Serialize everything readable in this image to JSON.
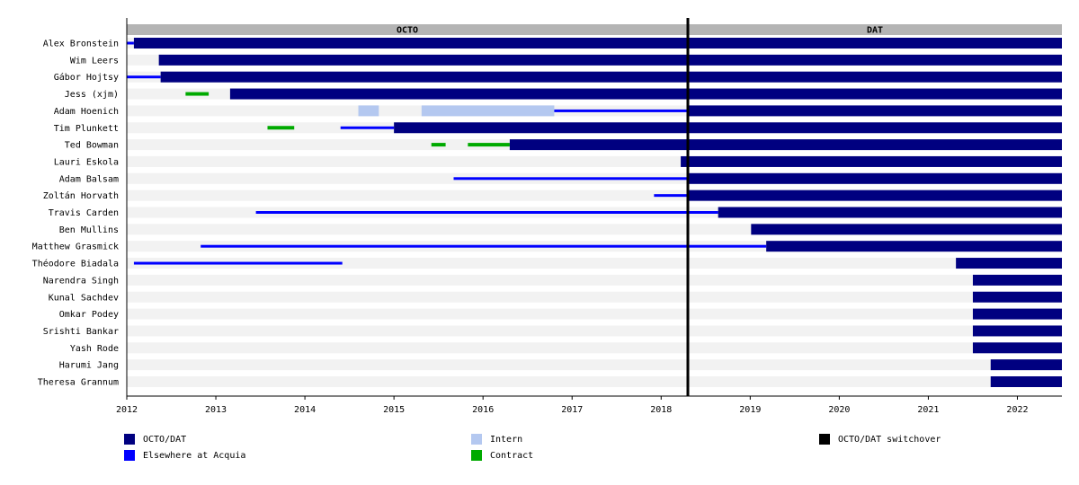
{
  "colors": {
    "octo_dat": "#000080",
    "elsewhere": "#0000ff",
    "intern": "#b4c8f0",
    "contract": "#00aa00",
    "switchover": "#000000",
    "period_band": "#b4b4b4",
    "row_band": "#f2f2f2"
  },
  "legend": [
    {
      "key": "octo_dat",
      "label": "OCTO/DAT",
      "color": "#000080"
    },
    {
      "key": "elsewhere",
      "label": "Elsewhere at Acquia",
      "color": "#0000ff"
    },
    {
      "key": "intern",
      "label": "Intern",
      "color": "#b4c8f0"
    },
    {
      "key": "contract",
      "label": "Contract",
      "color": "#00aa00"
    },
    {
      "key": "switchover",
      "label": "OCTO/DAT switchover",
      "color": "#000000"
    }
  ],
  "chart_data": {
    "type": "timeline",
    "x_range": [
      2012.0,
      2022.5
    ],
    "x_ticks": [
      "2012",
      "2013",
      "2014",
      "2015",
      "2016",
      "2017",
      "2018",
      "2019",
      "2020",
      "2021",
      "2022"
    ],
    "switchover": 2018.3,
    "periods": [
      {
        "label": "OCTO",
        "start": 2012.0,
        "end": 2018.3
      },
      {
        "label": "DAT",
        "start": 2018.3,
        "end": 2022.5
      }
    ],
    "people": [
      {
        "name": "Alex Bronstein",
        "segments": [
          {
            "type": "elsewhere",
            "start": 2012.0,
            "end": 2012.08
          },
          {
            "type": "octo_dat",
            "start": 2012.08,
            "end": 2022.5
          }
        ]
      },
      {
        "name": "Wim Leers",
        "segments": [
          {
            "type": "octo_dat",
            "start": 2012.36,
            "end": 2022.5
          }
        ]
      },
      {
        "name": "Gábor Hojtsy",
        "segments": [
          {
            "type": "elsewhere",
            "start": 2012.0,
            "end": 2012.38
          },
          {
            "type": "octo_dat",
            "start": 2012.38,
            "end": 2022.5
          }
        ]
      },
      {
        "name": "Jess (xjm)",
        "segments": [
          {
            "type": "contract",
            "start": 2012.66,
            "end": 2012.92
          },
          {
            "type": "octo_dat",
            "start": 2013.16,
            "end": 2022.5
          }
        ]
      },
      {
        "name": "Adam Hoenich",
        "segments": [
          {
            "type": "intern",
            "start": 2014.6,
            "end": 2014.83
          },
          {
            "type": "intern",
            "start": 2015.31,
            "end": 2016.8
          },
          {
            "type": "elsewhere",
            "start": 2016.8,
            "end": 2018.3
          },
          {
            "type": "octo_dat",
            "start": 2018.3,
            "end": 2022.5
          }
        ]
      },
      {
        "name": "Tim Plunkett",
        "segments": [
          {
            "type": "contract",
            "start": 2013.58,
            "end": 2013.88
          },
          {
            "type": "elsewhere",
            "start": 2014.4,
            "end": 2015.0
          },
          {
            "type": "octo_dat",
            "start": 2015.0,
            "end": 2022.5
          }
        ]
      },
      {
        "name": "Ted Bowman",
        "segments": [
          {
            "type": "contract",
            "start": 2015.42,
            "end": 2015.58
          },
          {
            "type": "contract",
            "start": 2015.83,
            "end": 2016.3
          },
          {
            "type": "octo_dat",
            "start": 2016.3,
            "end": 2022.5
          }
        ]
      },
      {
        "name": "Lauri Eskola",
        "segments": [
          {
            "type": "octo_dat",
            "start": 2018.22,
            "end": 2022.5
          }
        ]
      },
      {
        "name": "Adam Balsam",
        "segments": [
          {
            "type": "elsewhere",
            "start": 2015.67,
            "end": 2018.3
          },
          {
            "type": "octo_dat",
            "start": 2018.3,
            "end": 2022.5
          }
        ]
      },
      {
        "name": "Zoltán Horvath",
        "segments": [
          {
            "type": "elsewhere",
            "start": 2017.92,
            "end": 2018.3
          },
          {
            "type": "octo_dat",
            "start": 2018.3,
            "end": 2022.5
          }
        ]
      },
      {
        "name": "Travis Carden",
        "segments": [
          {
            "type": "elsewhere",
            "start": 2013.45,
            "end": 2018.64
          },
          {
            "type": "octo_dat",
            "start": 2018.64,
            "end": 2022.5
          }
        ]
      },
      {
        "name": "Ben Mullins",
        "segments": [
          {
            "type": "octo_dat",
            "start": 2019.01,
            "end": 2022.5
          }
        ]
      },
      {
        "name": "Matthew Grasmick",
        "segments": [
          {
            "type": "elsewhere",
            "start": 2012.83,
            "end": 2019.18
          },
          {
            "type": "octo_dat",
            "start": 2019.18,
            "end": 2022.5
          }
        ]
      },
      {
        "name": "Théodore Biadala",
        "segments": [
          {
            "type": "elsewhere",
            "start": 2012.08,
            "end": 2014.42
          },
          {
            "type": "octo_dat",
            "start": 2021.31,
            "end": 2022.5
          }
        ]
      },
      {
        "name": "Narendra Singh",
        "segments": [
          {
            "type": "octo_dat",
            "start": 2021.5,
            "end": 2022.5
          }
        ]
      },
      {
        "name": "Kunal Sachdev",
        "segments": [
          {
            "type": "octo_dat",
            "start": 2021.5,
            "end": 2022.5
          }
        ]
      },
      {
        "name": "Omkar Podey",
        "segments": [
          {
            "type": "octo_dat",
            "start": 2021.5,
            "end": 2022.5
          }
        ]
      },
      {
        "name": "Srishti Bankar",
        "segments": [
          {
            "type": "octo_dat",
            "start": 2021.5,
            "end": 2022.5
          }
        ]
      },
      {
        "name": "Yash Rode",
        "segments": [
          {
            "type": "octo_dat",
            "start": 2021.5,
            "end": 2022.5
          }
        ]
      },
      {
        "name": "Harumi Jang",
        "segments": [
          {
            "type": "octo_dat",
            "start": 2021.7,
            "end": 2022.5
          }
        ]
      },
      {
        "name": "Theresa Grannum",
        "segments": [
          {
            "type": "octo_dat",
            "start": 2021.7,
            "end": 2022.5
          }
        ]
      }
    ]
  }
}
